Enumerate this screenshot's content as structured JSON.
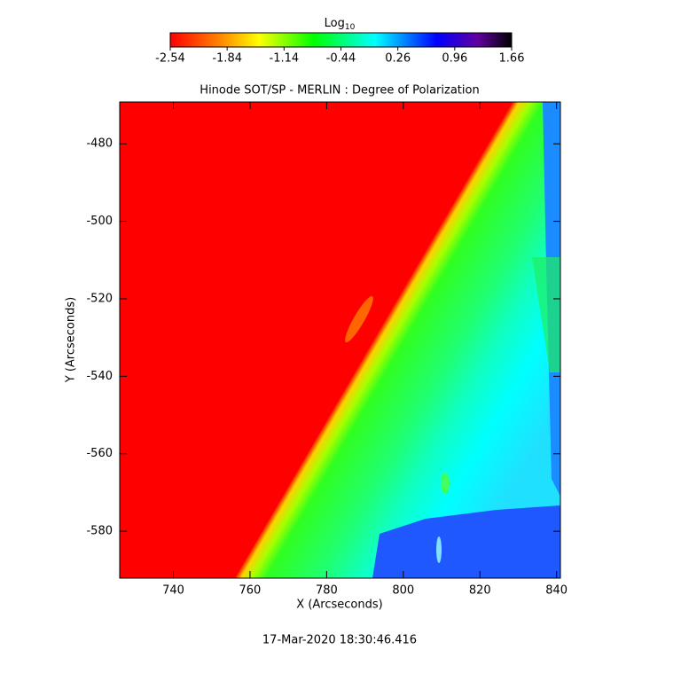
{
  "chart_data": {
    "type": "image",
    "title": "Hinode SOT/SP - MERLIN : Degree of Polarization",
    "x_label": "X (Arcseconds)",
    "y_label": "Y (Arcseconds)",
    "xlim": [
      726,
      841
    ],
    "xticks": [
      740,
      760,
      780,
      800,
      820,
      840
    ],
    "ylim": [
      -592.1,
      -469.2
    ],
    "yticks": [
      -480,
      -500,
      -520,
      -540,
      -560,
      -580
    ],
    "colorbar": {
      "label": "Log",
      "label_subscript": "10",
      "lim": [
        -2.54,
        1.66
      ],
      "ticks": [
        -2.54,
        -1.84,
        -1.14,
        -0.44,
        0.26,
        0.96,
        1.66
      ]
    }
  },
  "footer": {
    "timestamp": "17-Mar-2020 18:30:46.416"
  }
}
